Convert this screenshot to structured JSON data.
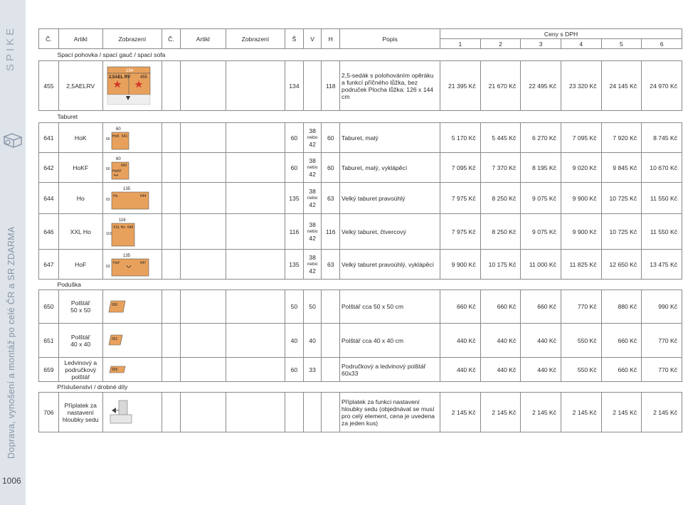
{
  "sidebar": {
    "brand": "SPIKE",
    "service_text": "Doprava, vynošení a montáž po celé ČR a SR ZDARMA",
    "page_number": "1006"
  },
  "header": {
    "col_c1": "Č.",
    "col_artikl1": "Artikl",
    "col_zobrazeni1": "Zobrazení",
    "col_c2": "Č.",
    "col_artikl2": "Artikl",
    "col_zobrazeni2": "Zobrazení",
    "col_s": "Š",
    "col_v": "V",
    "col_h": "H",
    "col_popis": "Popis",
    "ceny": "Ceny s DPH",
    "price_cols": [
      "1",
      "2",
      "3",
      "4",
      "5",
      "6"
    ]
  },
  "sections": {
    "sofa": "Spací pohovka / spací gauč / spací sofa",
    "taburet": "Taburet",
    "poduska": "Poduška",
    "prislusenstvi": "Příslušenství / drobné díly"
  },
  "rows": [
    {
      "no": "455",
      "artikl": "2,5AELRV",
      "s": "134",
      "v": "",
      "h": "118",
      "popis": "2,5-sedák s polohováním opěráku a funkcí příčného lůžka, bez područek Plocha lůžka: 126 x 144 cm",
      "prices": [
        "21 395 Kč",
        "21 670 Kč",
        "22 495 Kč",
        "23 320 Kč",
        "24 145 Kč",
        "24 970 Kč"
      ],
      "thumb_labels": [
        "134",
        "2,5AEL RV",
        "455"
      ]
    },
    {
      "no": "641",
      "artikl": "HoK",
      "s": "60",
      "v1": "38",
      "nebo": "nebo",
      "v2": "42",
      "h": "60",
      "popis": "Taburet, malý",
      "prices": [
        "5 170 Kč",
        "5 445 Kč",
        "6 270 Kč",
        "7 095 Kč",
        "7 920 Kč",
        "8 745 Kč"
      ],
      "thumb_labels": [
        "60",
        "HoK",
        "641",
        "60"
      ]
    },
    {
      "no": "642",
      "artikl": "HoKF",
      "s": "60",
      "v1": "38",
      "nebo": "nebo",
      "v2": "42",
      "h": "60",
      "popis": "Taburet, malý, vyklápěcí",
      "prices": [
        "7 095 Kč",
        "7 370 Kč",
        "8 195 Kč",
        "9 020 Kč",
        "9 845 Kč",
        "10 670 Kč"
      ],
      "thumb_labels": [
        "60",
        "642",
        "HoKF",
        "60"
      ]
    },
    {
      "no": "644",
      "artikl": "Ho",
      "s": "135",
      "v1": "38",
      "nebo": "nebo",
      "v2": "42",
      "h": "63",
      "popis": "Velký taburet pravoúhlý",
      "prices": [
        "7 975 Kč",
        "8 250 Kč",
        "9 075 Kč",
        "9 900 Kč",
        "10 725 Kč",
        "11 550 Kč"
      ],
      "thumb_labels": [
        "135",
        "Ho",
        "644",
        "63"
      ]
    },
    {
      "no": "646",
      "artikl": "XXL Ho",
      "s": "116",
      "v1": "38",
      "nebo": "nebo",
      "v2": "42",
      "h": "116",
      "popis": "Velký taburet, čtvercový",
      "prices": [
        "7 975 Kč",
        "8 250 Kč",
        "9 075 Kč",
        "9 900 Kč",
        "10 725 Kč",
        "11 550 Kč"
      ],
      "thumb_labels": [
        "116",
        "XXL Ho",
        "646",
        "116"
      ]
    },
    {
      "no": "647",
      "artikl": "HoF",
      "s": "135",
      "v1": "38",
      "nebo": "nebo",
      "v2": "42",
      "h": "63",
      "popis": "Velký taburet pravoúhlý, vyklápěcí",
      "prices": [
        "9 900 Kč",
        "10 175 Kč",
        "11 000 Kč",
        "11 825 Kč",
        "12 650 Kč",
        "13 475 Kč"
      ],
      "thumb_labels": [
        "135",
        "HoF",
        "647",
        "63"
      ]
    },
    {
      "no": "650",
      "artikl_l1": "Polštář",
      "artikl_l2": "50 x 50",
      "s": "50",
      "v": "50",
      "h": "",
      "popis": "Polštář cca 50 x 50 cm",
      "prices": [
        "660 Kč",
        "660 Kč",
        "660 Kč",
        "770 Kč",
        "880 Kč",
        "990 Kč"
      ],
      "thumb_labels": [
        "650"
      ]
    },
    {
      "no": "651",
      "artikl_l1": "Polštář",
      "artikl_l2": "40 x 40",
      "s": "40",
      "v": "40",
      "h": "",
      "popis": "Polštář cca 40 x 40 cm",
      "prices": [
        "440 Kč",
        "440 Kč",
        "440 Kč",
        "550 Kč",
        "660 Kč",
        "770 Kč"
      ],
      "thumb_labels": [
        "651"
      ]
    },
    {
      "no": "659",
      "artikl_l1": "Ledvinový a",
      "artikl_l2": "područkový",
      "artikl_l3": "polštář",
      "s": "60",
      "v": "33",
      "h": "",
      "popis": "Područkový a ledvinový polštář 60x33",
      "prices": [
        "440 Kč",
        "440 Kč",
        "440 Kč",
        "550 Kč",
        "660 Kč",
        "770 Kč"
      ],
      "thumb_labels": [
        "659"
      ]
    },
    {
      "no": "706",
      "artikl_l1": "Příplatek za",
      "artikl_l2": "nastavení",
      "artikl_l3": "hloubky sedu",
      "s": "",
      "v": "",
      "h": "",
      "popis": "Příplatek za funkci nastavení hloubky sedu (objednávat se musí pro celý element, cena je uvedena za jeden kus)",
      "prices": [
        "2 145 Kč",
        "2 145 Kč",
        "2 145 Kč",
        "2 145 Kč",
        "2 145 Kč",
        "2 145 Kč"
      ]
    }
  ],
  "colors": {
    "sidebar_bg": "#dfe4ea",
    "thumb_orange": "#e8a15c",
    "star_red": "#d23b2b",
    "border": "#8a8a8a"
  }
}
